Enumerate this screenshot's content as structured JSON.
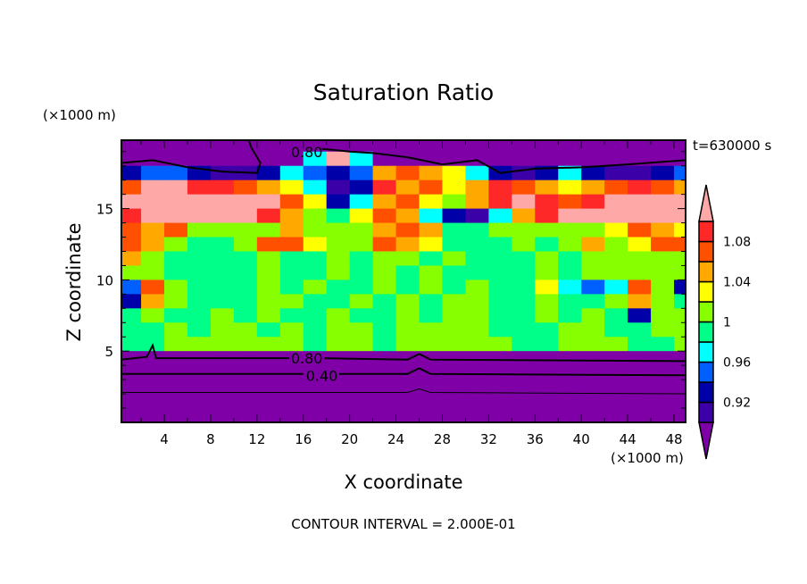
{
  "chart_data": {
    "type": "heatmap",
    "title": "Saturation Ratio",
    "xlabel": "X coordinate",
    "ylabel": "Z coordinate",
    "x_unit": "(×1000 m)",
    "y_unit": "(×1000 m)",
    "time_label": "t=630000 s",
    "footer": "CONTOUR INTERVAL = 2.000E-01",
    "xlim": [
      0.3,
      49.0
    ],
    "ylim": [
      0,
      19.8
    ],
    "x_ticks": [
      4,
      8,
      12,
      16,
      20,
      24,
      28,
      32,
      36,
      40,
      44,
      48
    ],
    "x_tick_labels": [
      "4",
      "8",
      "12",
      "16",
      "20",
      "24",
      "28",
      "32",
      "36",
      "40",
      "44",
      "48"
    ],
    "y_ticks": [
      5,
      10,
      15
    ],
    "y_tick_labels": [
      "5",
      "10",
      "15"
    ],
    "grid_x_edges_step": 2,
    "grid_y_edges_step": 1,
    "grid_rows_top_to_bottom": [
      [
        0.8,
        0.8,
        0.8,
        0.8,
        0.8,
        0.8,
        0.8,
        0.8,
        0.8,
        0.8,
        0.8,
        0.8,
        0.8,
        0.8,
        0.8,
        0.8,
        0.8,
        0.8,
        0.8,
        0.8,
        0.8,
        0.8,
        0.8,
        0.8,
        0.8
      ],
      [
        0.8,
        0.8,
        0.8,
        0.8,
        0.8,
        0.8,
        0.8,
        0.8,
        0.97,
        1.12,
        0.97,
        0.8,
        0.8,
        0.8,
        0.8,
        0.8,
        0.8,
        0.8,
        0.8,
        0.8,
        0.8,
        0.8,
        0.8,
        0.8,
        0.8
      ],
      [
        0.93,
        0.95,
        0.95,
        0.93,
        0.91,
        0.91,
        0.93,
        0.97,
        0.95,
        0.93,
        0.95,
        1.05,
        1.07,
        1.05,
        1.03,
        0.97,
        0.93,
        0.91,
        0.93,
        0.97,
        0.93,
        0.91,
        0.91,
        0.93,
        0.95
      ],
      [
        1.07,
        1.12,
        1.12,
        1.09,
        1.09,
        1.07,
        1.05,
        1.03,
        0.97,
        0.91,
        0.93,
        1.09,
        1.05,
        1.07,
        1.03,
        1.05,
        1.09,
        1.07,
        1.05,
        1.03,
        1.05,
        1.07,
        1.09,
        1.07,
        1.05
      ],
      [
        1.12,
        1.12,
        1.12,
        1.12,
        1.12,
        1.12,
        1.12,
        1.07,
        1.03,
        0.93,
        0.97,
        1.05,
        1.07,
        1.03,
        1.01,
        1.05,
        1.09,
        1.12,
        1.09,
        1.07,
        1.09,
        1.12,
        1.12,
        1.12,
        1.12
      ],
      [
        1.09,
        1.12,
        1.12,
        1.12,
        1.12,
        1.12,
        1.09,
        1.05,
        1.01,
        0.99,
        1.03,
        1.07,
        1.05,
        0.97,
        0.93,
        0.91,
        0.97,
        1.05,
        1.09,
        1.12,
        1.12,
        1.12,
        1.12,
        1.12,
        1.12
      ],
      [
        1.07,
        1.05,
        1.07,
        1.01,
        1.01,
        1.01,
        1.01,
        1.05,
        1.01,
        1.01,
        1.01,
        1.05,
        1.07,
        1.05,
        0.99,
        0.99,
        1.01,
        1.01,
        1.01,
        1.01,
        1.01,
        1.03,
        1.07,
        1.05,
        1.03
      ],
      [
        1.07,
        1.05,
        1.01,
        0.99,
        0.99,
        1.01,
        1.07,
        1.07,
        1.03,
        1.01,
        1.01,
        1.07,
        1.05,
        1.03,
        0.99,
        0.99,
        0.99,
        1.01,
        0.99,
        1.01,
        1.05,
        1.01,
        1.03,
        1.07,
        1.07
      ],
      [
        1.05,
        1.01,
        0.99,
        0.99,
        0.99,
        0.99,
        1.01,
        0.99,
        0.99,
        1.01,
        0.99,
        1.01,
        1.01,
        0.99,
        1.01,
        0.99,
        0.99,
        0.99,
        1.01,
        0.99,
        1.01,
        1.01,
        1.01,
        1.01,
        1.01
      ],
      [
        1.01,
        1.01,
        0.99,
        0.99,
        0.99,
        0.99,
        1.01,
        0.99,
        0.99,
        1.01,
        0.99,
        1.01,
        0.99,
        1.01,
        0.99,
        0.99,
        0.99,
        0.99,
        1.01,
        0.99,
        1.01,
        1.01,
        1.01,
        1.01,
        1.01
      ],
      [
        0.95,
        1.07,
        1.01,
        0.99,
        0.99,
        0.99,
        1.01,
        0.99,
        1.01,
        0.99,
        0.99,
        1.01,
        0.99,
        1.01,
        0.99,
        1.01,
        0.99,
        0.99,
        1.03,
        0.97,
        0.95,
        0.97,
        1.07,
        1.01,
        0.93
      ],
      [
        0.93,
        1.05,
        1.01,
        0.99,
        0.99,
        0.99,
        1.01,
        1.01,
        0.99,
        0.99,
        1.01,
        0.99,
        1.01,
        0.99,
        1.01,
        1.01,
        0.99,
        0.99,
        1.01,
        0.99,
        0.99,
        1.01,
        1.05,
        1.01,
        0.99
      ],
      [
        0.99,
        1.01,
        0.99,
        0.99,
        1.01,
        0.99,
        1.01,
        0.99,
        0.99,
        1.01,
        0.99,
        0.99,
        1.01,
        0.99,
        1.01,
        1.01,
        0.99,
        0.99,
        1.01,
        0.99,
        1.01,
        0.99,
        0.93,
        1.01,
        1.01
      ],
      [
        0.99,
        0.99,
        1.01,
        0.99,
        1.01,
        1.01,
        0.99,
        1.01,
        0.99,
        1.01,
        1.01,
        0.99,
        1.01,
        1.01,
        1.01,
        1.01,
        0.99,
        0.99,
        0.99,
        1.01,
        1.01,
        0.99,
        0.99,
        1.01,
        1.01
      ],
      [
        0.99,
        0.99,
        1.01,
        1.01,
        1.01,
        1.01,
        1.01,
        1.01,
        0.99,
        1.01,
        1.01,
        0.99,
        1.01,
        1.01,
        1.01,
        1.01,
        1.01,
        0.99,
        0.99,
        1.01,
        1.01,
        1.01,
        0.99,
        0.99,
        1.01
      ],
      [
        0.8,
        0.8,
        0.8,
        0.8,
        0.8,
        0.8,
        0.8,
        0.8,
        0.8,
        0.8,
        0.8,
        0.8,
        0.8,
        0.8,
        0.8,
        0.8,
        0.8,
        0.8,
        0.8,
        0.8,
        0.8,
        0.8,
        0.8,
        0.8,
        0.8
      ],
      [
        0.7,
        0.7,
        0.7,
        0.7,
        0.7,
        0.7,
        0.7,
        0.7,
        0.7,
        0.7,
        0.7,
        0.7,
        0.7,
        0.7,
        0.7,
        0.7,
        0.7,
        0.7,
        0.7,
        0.7,
        0.7,
        0.7,
        0.7,
        0.7,
        0.7
      ],
      [
        0.5,
        0.5,
        0.5,
        0.5,
        0.5,
        0.5,
        0.5,
        0.5,
        0.5,
        0.5,
        0.5,
        0.5,
        0.5,
        0.5,
        0.5,
        0.5,
        0.5,
        0.5,
        0.5,
        0.5,
        0.5,
        0.5,
        0.5,
        0.5,
        0.5
      ],
      [
        0.3,
        0.3,
        0.3,
        0.3,
        0.3,
        0.3,
        0.3,
        0.3,
        0.3,
        0.3,
        0.3,
        0.3,
        0.3,
        0.3,
        0.3,
        0.3,
        0.3,
        0.3,
        0.3,
        0.3,
        0.3,
        0.3,
        0.3,
        0.3,
        0.3
      ],
      [
        0.2,
        0.2,
        0.2,
        0.2,
        0.2,
        0.2,
        0.2,
        0.2,
        0.2,
        0.2,
        0.2,
        0.2,
        0.2,
        0.2,
        0.2,
        0.2,
        0.2,
        0.2,
        0.2,
        0.2,
        0.2,
        0.2,
        0.2,
        0.2,
        0.2
      ]
    ],
    "color_levels": [
      0.9,
      0.92,
      0.94,
      0.96,
      0.98,
      1.0,
      1.02,
      1.04,
      1.06,
      1.08,
      1.1
    ],
    "colors": [
      "#8000a8",
      "#3c00a8",
      "#0000a8",
      "#0060ff",
      "#00ffff",
      "#00ff88",
      "#88ff00",
      "#ffff00",
      "#ffa800",
      "#ff5000",
      "#ff2828",
      "#ffa8a8"
    ],
    "colorbar_labels": [
      {
        "value": 1.08,
        "text": "1.08"
      },
      {
        "value": 1.04,
        "text": "1.04"
      },
      {
        "value": 1.0,
        "text": "1"
      },
      {
        "value": 0.96,
        "text": "0.96"
      },
      {
        "value": 0.92,
        "text": "0.92"
      }
    ],
    "contours": [
      {
        "level": 0.8,
        "points": [
          [
            0.3,
            18.2
          ],
          [
            3,
            18.4
          ],
          [
            6,
            17.9
          ],
          [
            9,
            17.6
          ],
          [
            12,
            17.5
          ],
          [
            12.3,
            18.2
          ],
          [
            11.5,
            19.3
          ],
          [
            11.3,
            19.8
          ]
        ]
      },
      {
        "level": 0.8,
        "points": [
          [
            17.6,
            19.2
          ],
          [
            20,
            19.0
          ],
          [
            22,
            18.9
          ],
          [
            25,
            18.6
          ],
          [
            28,
            18.1
          ],
          [
            31,
            18.4
          ],
          [
            33,
            17.5
          ],
          [
            36,
            17.8
          ],
          [
            40,
            17.9
          ],
          [
            44,
            18.1
          ],
          [
            49,
            18.4
          ]
        ]
      },
      {
        "level": 0.8,
        "points": [
          [
            0.3,
            4.4
          ],
          [
            2.5,
            4.6
          ],
          [
            3,
            5.4
          ],
          [
            3.3,
            4.5
          ],
          [
            14.8,
            4.5
          ]
        ]
      },
      {
        "level": 0.8,
        "points": [
          [
            17.8,
            4.5
          ],
          [
            25,
            4.4
          ],
          [
            26,
            4.8
          ],
          [
            27,
            4.4
          ],
          [
            49,
            4.3
          ]
        ]
      },
      {
        "level": 0.4,
        "points": [
          [
            0.3,
            3.4
          ],
          [
            16,
            3.4
          ]
        ]
      },
      {
        "level": 0.4,
        "points": [
          [
            19.1,
            3.4
          ],
          [
            25,
            3.4
          ],
          [
            26,
            3.8
          ],
          [
            27,
            3.4
          ],
          [
            49,
            3.3
          ]
        ]
      },
      {
        "level": 0.2,
        "points": [
          [
            0.3,
            2.1
          ],
          [
            25,
            2.1
          ],
          [
            26,
            2.35
          ],
          [
            27,
            2.1
          ],
          [
            49,
            2.0
          ]
        ]
      }
    ],
    "contour_labels": [
      {
        "text": "0.80",
        "at": [
          16.3,
          19.0
        ]
      },
      {
        "text": "0.80",
        "at": [
          16.3,
          4.5
        ]
      },
      {
        "text": "0.40",
        "at": [
          17.6,
          3.3
        ]
      }
    ]
  }
}
